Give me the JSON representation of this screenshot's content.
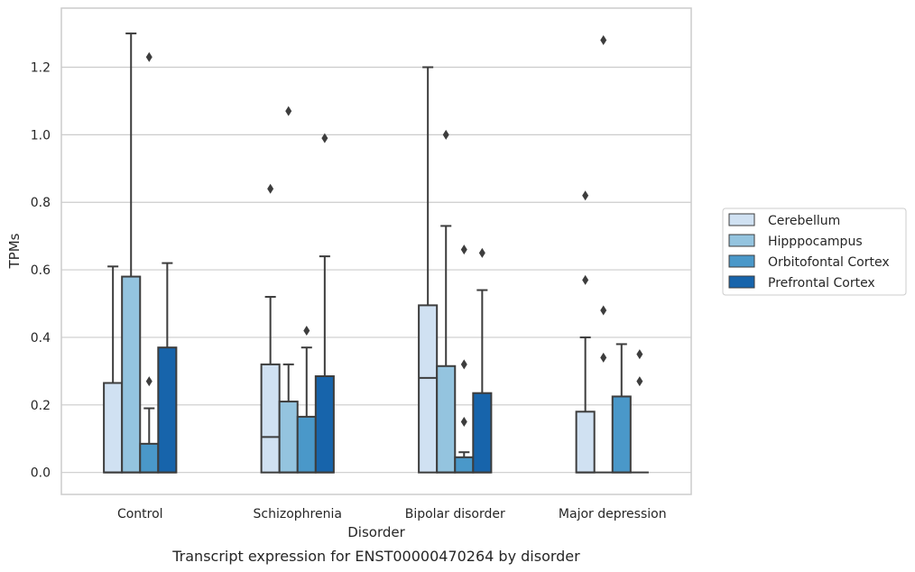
{
  "chart_data": {
    "type": "box",
    "title": "",
    "caption": "Transcript expression for ENST00000470264 by disorder",
    "xlabel": "Disorder",
    "ylabel": "TPMs",
    "ylim": [
      -0.065,
      1.375
    ],
    "yticks": [
      "0.0",
      "0.2",
      "0.4",
      "0.6",
      "0.8",
      "1.0",
      "1.2"
    ],
    "grid": true,
    "legend_position": "right",
    "categories": [
      "Control",
      "Schizophrenia",
      "Bipolar disorder",
      "Major depression"
    ],
    "series": [
      {
        "name": "Cerebellum",
        "color": "#d0e1f2",
        "boxes": [
          {
            "q1": 0.0,
            "median": 0.0,
            "q3": 0.265,
            "whisker_low": 0.0,
            "whisker_high": 0.61,
            "outliers": []
          },
          {
            "q1": 0.0,
            "median": 0.105,
            "q3": 0.32,
            "whisker_low": 0.0,
            "whisker_high": 0.52,
            "outliers": [
              0.84
            ]
          },
          {
            "q1": 0.0,
            "median": 0.28,
            "q3": 0.495,
            "whisker_low": 0.0,
            "whisker_high": 1.2,
            "outliers": []
          },
          {
            "q1": 0.0,
            "median": 0.0,
            "q3": 0.18,
            "whisker_low": 0.0,
            "whisker_high": 0.4,
            "outliers": [
              0.57,
              0.82
            ]
          }
        ]
      },
      {
        "name": "Hipppocampus",
        "color": "#94c4df",
        "boxes": [
          {
            "q1": 0.0,
            "median": 0.0,
            "q3": 0.58,
            "whisker_low": 0.0,
            "whisker_high": 1.3,
            "outliers": []
          },
          {
            "q1": 0.0,
            "median": 0.0,
            "q3": 0.21,
            "whisker_low": 0.0,
            "whisker_high": 0.32,
            "outliers": [
              1.07
            ]
          },
          {
            "q1": 0.0,
            "median": 0.0,
            "q3": 0.315,
            "whisker_low": 0.0,
            "whisker_high": 0.73,
            "outliers": [
              1.0
            ]
          },
          {
            "q1": 0.0,
            "median": 0.0,
            "q3": 0.0,
            "whisker_low": 0.0,
            "whisker_high": 0.0,
            "outliers": [
              0.34,
              0.48,
              1.28
            ]
          }
        ]
      },
      {
        "name": "Orbitofontal Cortex",
        "color": "#4a98c9",
        "boxes": [
          {
            "q1": 0.0,
            "median": 0.0,
            "q3": 0.085,
            "whisker_low": 0.0,
            "whisker_high": 0.19,
            "outliers": [
              0.27,
              1.23
            ]
          },
          {
            "q1": 0.0,
            "median": 0.0,
            "q3": 0.165,
            "whisker_low": 0.0,
            "whisker_high": 0.37,
            "outliers": [
              0.42
            ]
          },
          {
            "q1": 0.0,
            "median": 0.0,
            "q3": 0.045,
            "whisker_low": 0.0,
            "whisker_high": 0.06,
            "outliers": [
              0.15,
              0.32,
              0.66
            ]
          },
          {
            "q1": 0.0,
            "median": 0.0,
            "q3": 0.225,
            "whisker_low": 0.0,
            "whisker_high": 0.38,
            "outliers": []
          }
        ]
      },
      {
        "name": "Prefrontal Cortex",
        "color": "#1764ab",
        "boxes": [
          {
            "q1": 0.0,
            "median": 0.0,
            "q3": 0.37,
            "whisker_low": 0.0,
            "whisker_high": 0.62,
            "outliers": []
          },
          {
            "q1": 0.0,
            "median": 0.0,
            "q3": 0.285,
            "whisker_low": 0.0,
            "whisker_high": 0.64,
            "outliers": [
              0.99
            ]
          },
          {
            "q1": 0.0,
            "median": 0.0,
            "q3": 0.235,
            "whisker_low": 0.0,
            "whisker_high": 0.54,
            "outliers": [
              0.65
            ]
          },
          {
            "q1": 0.0,
            "median": 0.0,
            "q3": 0.0,
            "whisker_low": 0.0,
            "whisker_high": 0.0,
            "outliers": [
              0.27,
              0.35
            ]
          }
        ]
      }
    ]
  }
}
